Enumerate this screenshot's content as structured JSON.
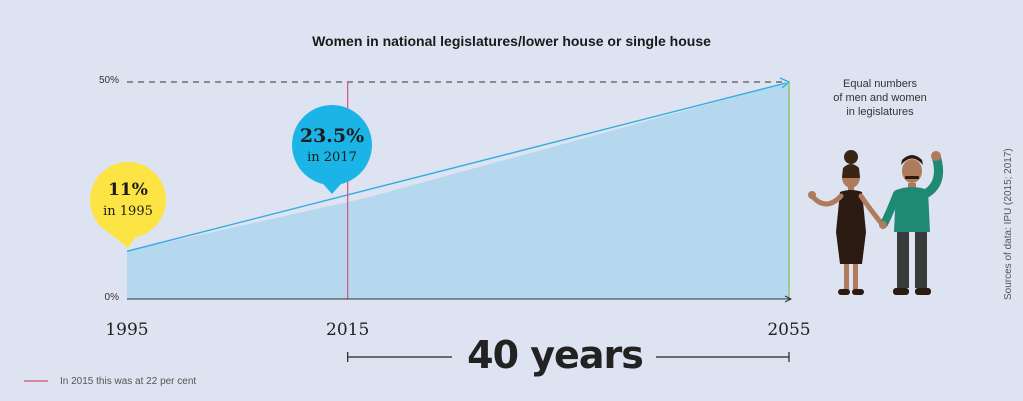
{
  "chart_data": {
    "type": "area",
    "title": "Women in national legislatures/lower house or single house",
    "x": [
      1995,
      2017,
      2055
    ],
    "values": [
      11,
      23.5,
      50
    ],
    "ylim": [
      0,
      50
    ],
    "xlim": [
      1995,
      2055
    ],
    "yticks": [
      "0%",
      "50%"
    ],
    "xticks": [
      "1995",
      "2015",
      "2055"
    ],
    "reference_line": {
      "x": 2015,
      "value": 22,
      "label": "In 2015 this was at 22 per cent",
      "color": "#d9507a"
    },
    "target_line": {
      "value": 50,
      "style": "dashed"
    },
    "annotations": [
      {
        "value_label": "11%",
        "sub_label": "in 1995",
        "color": "#fbe443"
      },
      {
        "value_label": "23.5%",
        "sub_label": "in 2017",
        "color": "#1ab4e6"
      }
    ],
    "goal_label": [
      "Equal numbers",
      "of men and women",
      "in legislatures"
    ],
    "duration_label": "40 years",
    "source": "Sources of data: IPU (2015; 2017)",
    "colors": {
      "fill": "#b5d8ef",
      "line": "#34aee2",
      "axis": "#333333",
      "background": "#dde3f1",
      "goal_marker": "#7bbf4a"
    },
    "grid": false
  }
}
